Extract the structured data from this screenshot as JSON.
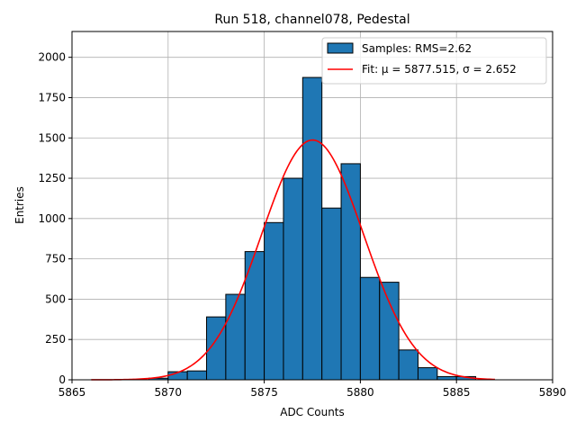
{
  "chart_data": {
    "type": "bar",
    "title": "Run 518, channel078, Pedestal",
    "xlabel": "ADC Counts",
    "ylabel": "Entries",
    "xlim": [
      5865,
      5890
    ],
    "ylim": [
      0,
      2160
    ],
    "xticks": [
      5865,
      5870,
      5875,
      5880,
      5885,
      5890
    ],
    "yticks": [
      0,
      250,
      500,
      750,
      1000,
      1250,
      1500,
      1750,
      2000
    ],
    "grid": true,
    "legend_position": "top-right",
    "bin_width": 1,
    "histogram": {
      "name": "Samples: RMS=2.62",
      "color": "#1f77b4",
      "bins": [
        {
          "x": 5869,
          "count": 10
        },
        {
          "x": 5870,
          "count": 50
        },
        {
          "x": 5871,
          "count": 55
        },
        {
          "x": 5872,
          "count": 390
        },
        {
          "x": 5873,
          "count": 530
        },
        {
          "x": 5874,
          "count": 795
        },
        {
          "x": 5875,
          "count": 975
        },
        {
          "x": 5876,
          "count": 1250
        },
        {
          "x": 5877,
          "count": 1875
        },
        {
          "x": 5878,
          "count": 1065
        },
        {
          "x": 5879,
          "count": 1340
        },
        {
          "x": 5880,
          "count": 635
        },
        {
          "x": 5881,
          "count": 605
        },
        {
          "x": 5882,
          "count": 185
        },
        {
          "x": 5883,
          "count": 75
        },
        {
          "x": 5884,
          "count": 20
        },
        {
          "x": 5885,
          "count": 20
        }
      ]
    },
    "fit": {
      "name": "Fit: μ = 5877.515, σ = 2.652",
      "color": "#ff0000",
      "mu": 5877.515,
      "sigma": 2.652,
      "amplitude": 1487,
      "x_range": [
        5866,
        5887
      ]
    }
  }
}
